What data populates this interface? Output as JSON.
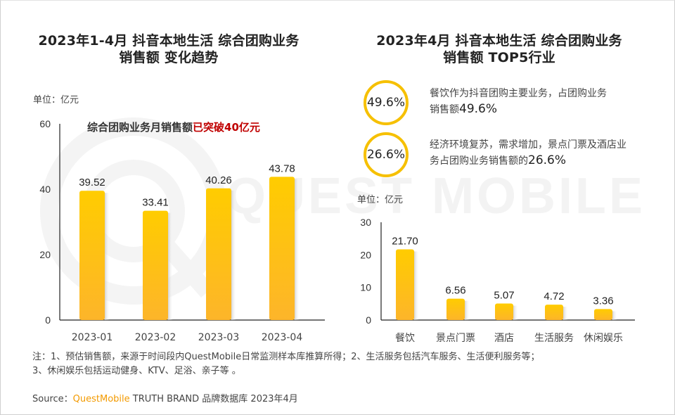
{
  "watermark": "QUEST MOBILE",
  "colors": {
    "bar_top": "#ffcc00",
    "bar_bottom": "#fdb52a",
    "circle": "#f6c000",
    "highlight_red": "#c00000",
    "brand_orange": "#f39a00"
  },
  "left": {
    "title_line1": "2023年1-4月 抖音本地生活 综合团购业务",
    "title_line2": "销售额 变化趋势",
    "unit": "单位：亿元",
    "annotation_prefix": "综合团购业务月销售额",
    "annotation_highlight": "已突破40亿元"
  },
  "right": {
    "title_line1": "2023年4月 抖音本地生活 综合团购业务",
    "title_line2": "销售额 TOP5行业",
    "unit": "单位：亿元",
    "kpis": [
      {
        "value": "49.6%",
        "text": "餐饮作为抖音团购主要业务，占团购业务销售额",
        "text_value": "49.6%"
      },
      {
        "value": "26.6%",
        "text": "经济环境复苏，需求增加，景点门票及酒店业务占团购业务销售额的",
        "text_value": "26.6%"
      }
    ]
  },
  "chart_data": [
    {
      "type": "bar",
      "title": "2023年1-4月 抖音本地生活 综合团购业务 销售额 变化趋势",
      "xlabel": "",
      "ylabel": "单位：亿元",
      "categories": [
        "2023-01",
        "2023-02",
        "2023-03",
        "2023-04"
      ],
      "values": [
        39.52,
        33.41,
        40.26,
        43.78
      ],
      "value_labels": [
        "39.52",
        "33.41",
        "40.26",
        "43.78"
      ],
      "ylim": [
        0,
        60
      ],
      "yticks": [
        "0",
        "20",
        "40",
        "60"
      ],
      "grid": false
    },
    {
      "type": "bar",
      "title": "2023年4月 抖音本地生活 综合团购业务 销售额 TOP5行业",
      "xlabel": "",
      "ylabel": "单位：亿元",
      "categories": [
        "餐饮",
        "景点门票",
        "酒店",
        "生活服务",
        "休闲娱乐"
      ],
      "values": [
        21.7,
        6.56,
        5.07,
        4.72,
        3.36
      ],
      "value_labels": [
        "21.70",
        "6.56",
        "5.07",
        "4.72",
        "3.36"
      ],
      "ylim": [
        0,
        30
      ],
      "yticks": [
        "0",
        "10",
        "20",
        "30"
      ],
      "grid": false
    }
  ],
  "notes": {
    "line1": "注：1、预估销售额，来源于时间段内QuestMobile日常监测样本库推算所得；2、生活服务包括汽车服务、生活便利服务等；",
    "line2": "3、休闲娱乐包括运动健身、KTV、足浴、亲子等 。"
  },
  "source": {
    "label": "Source：",
    "brand": "QuestMobile",
    "rest": " TRUTH BRAND 品牌数据库 2023年4月"
  }
}
